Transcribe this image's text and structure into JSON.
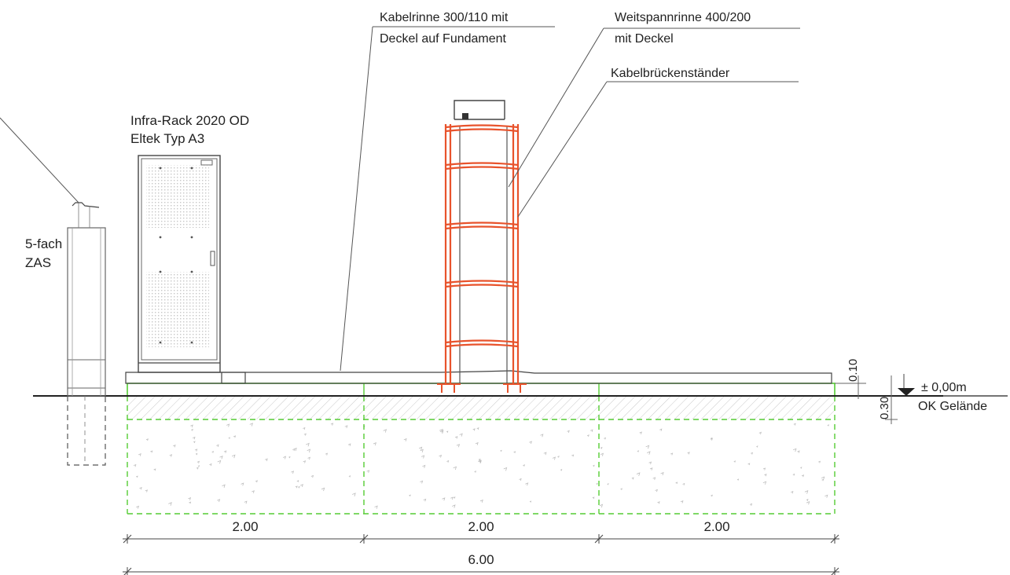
{
  "labels": {
    "kabelrinne_line1": "Kabelrinne 300/110 mit",
    "kabelrinne_line2": "Deckel auf Fundament",
    "weitspann_line1": "Weitspannrinne 400/200",
    "weitspann_line2": "mit Deckel",
    "kabelbruecke": "Kabelbrückenständer",
    "rack_line1": "Infra-Rack 2020 OD",
    "rack_line2": "Eltek Typ A3",
    "zas_line1": "5-fach",
    "zas_line2": "ZAS",
    "level": "± 0,00m",
    "ground": "OK Gelände",
    "dim_010": "0.10",
    "dim_030": "0.30"
  },
  "dimensions": {
    "segments": [
      "2.00",
      "2.00",
      "2.00"
    ],
    "total": "6.00"
  },
  "colors": {
    "steel": "#e8532c",
    "foundation": "#55cc33",
    "line": "#3a3a3a"
  }
}
